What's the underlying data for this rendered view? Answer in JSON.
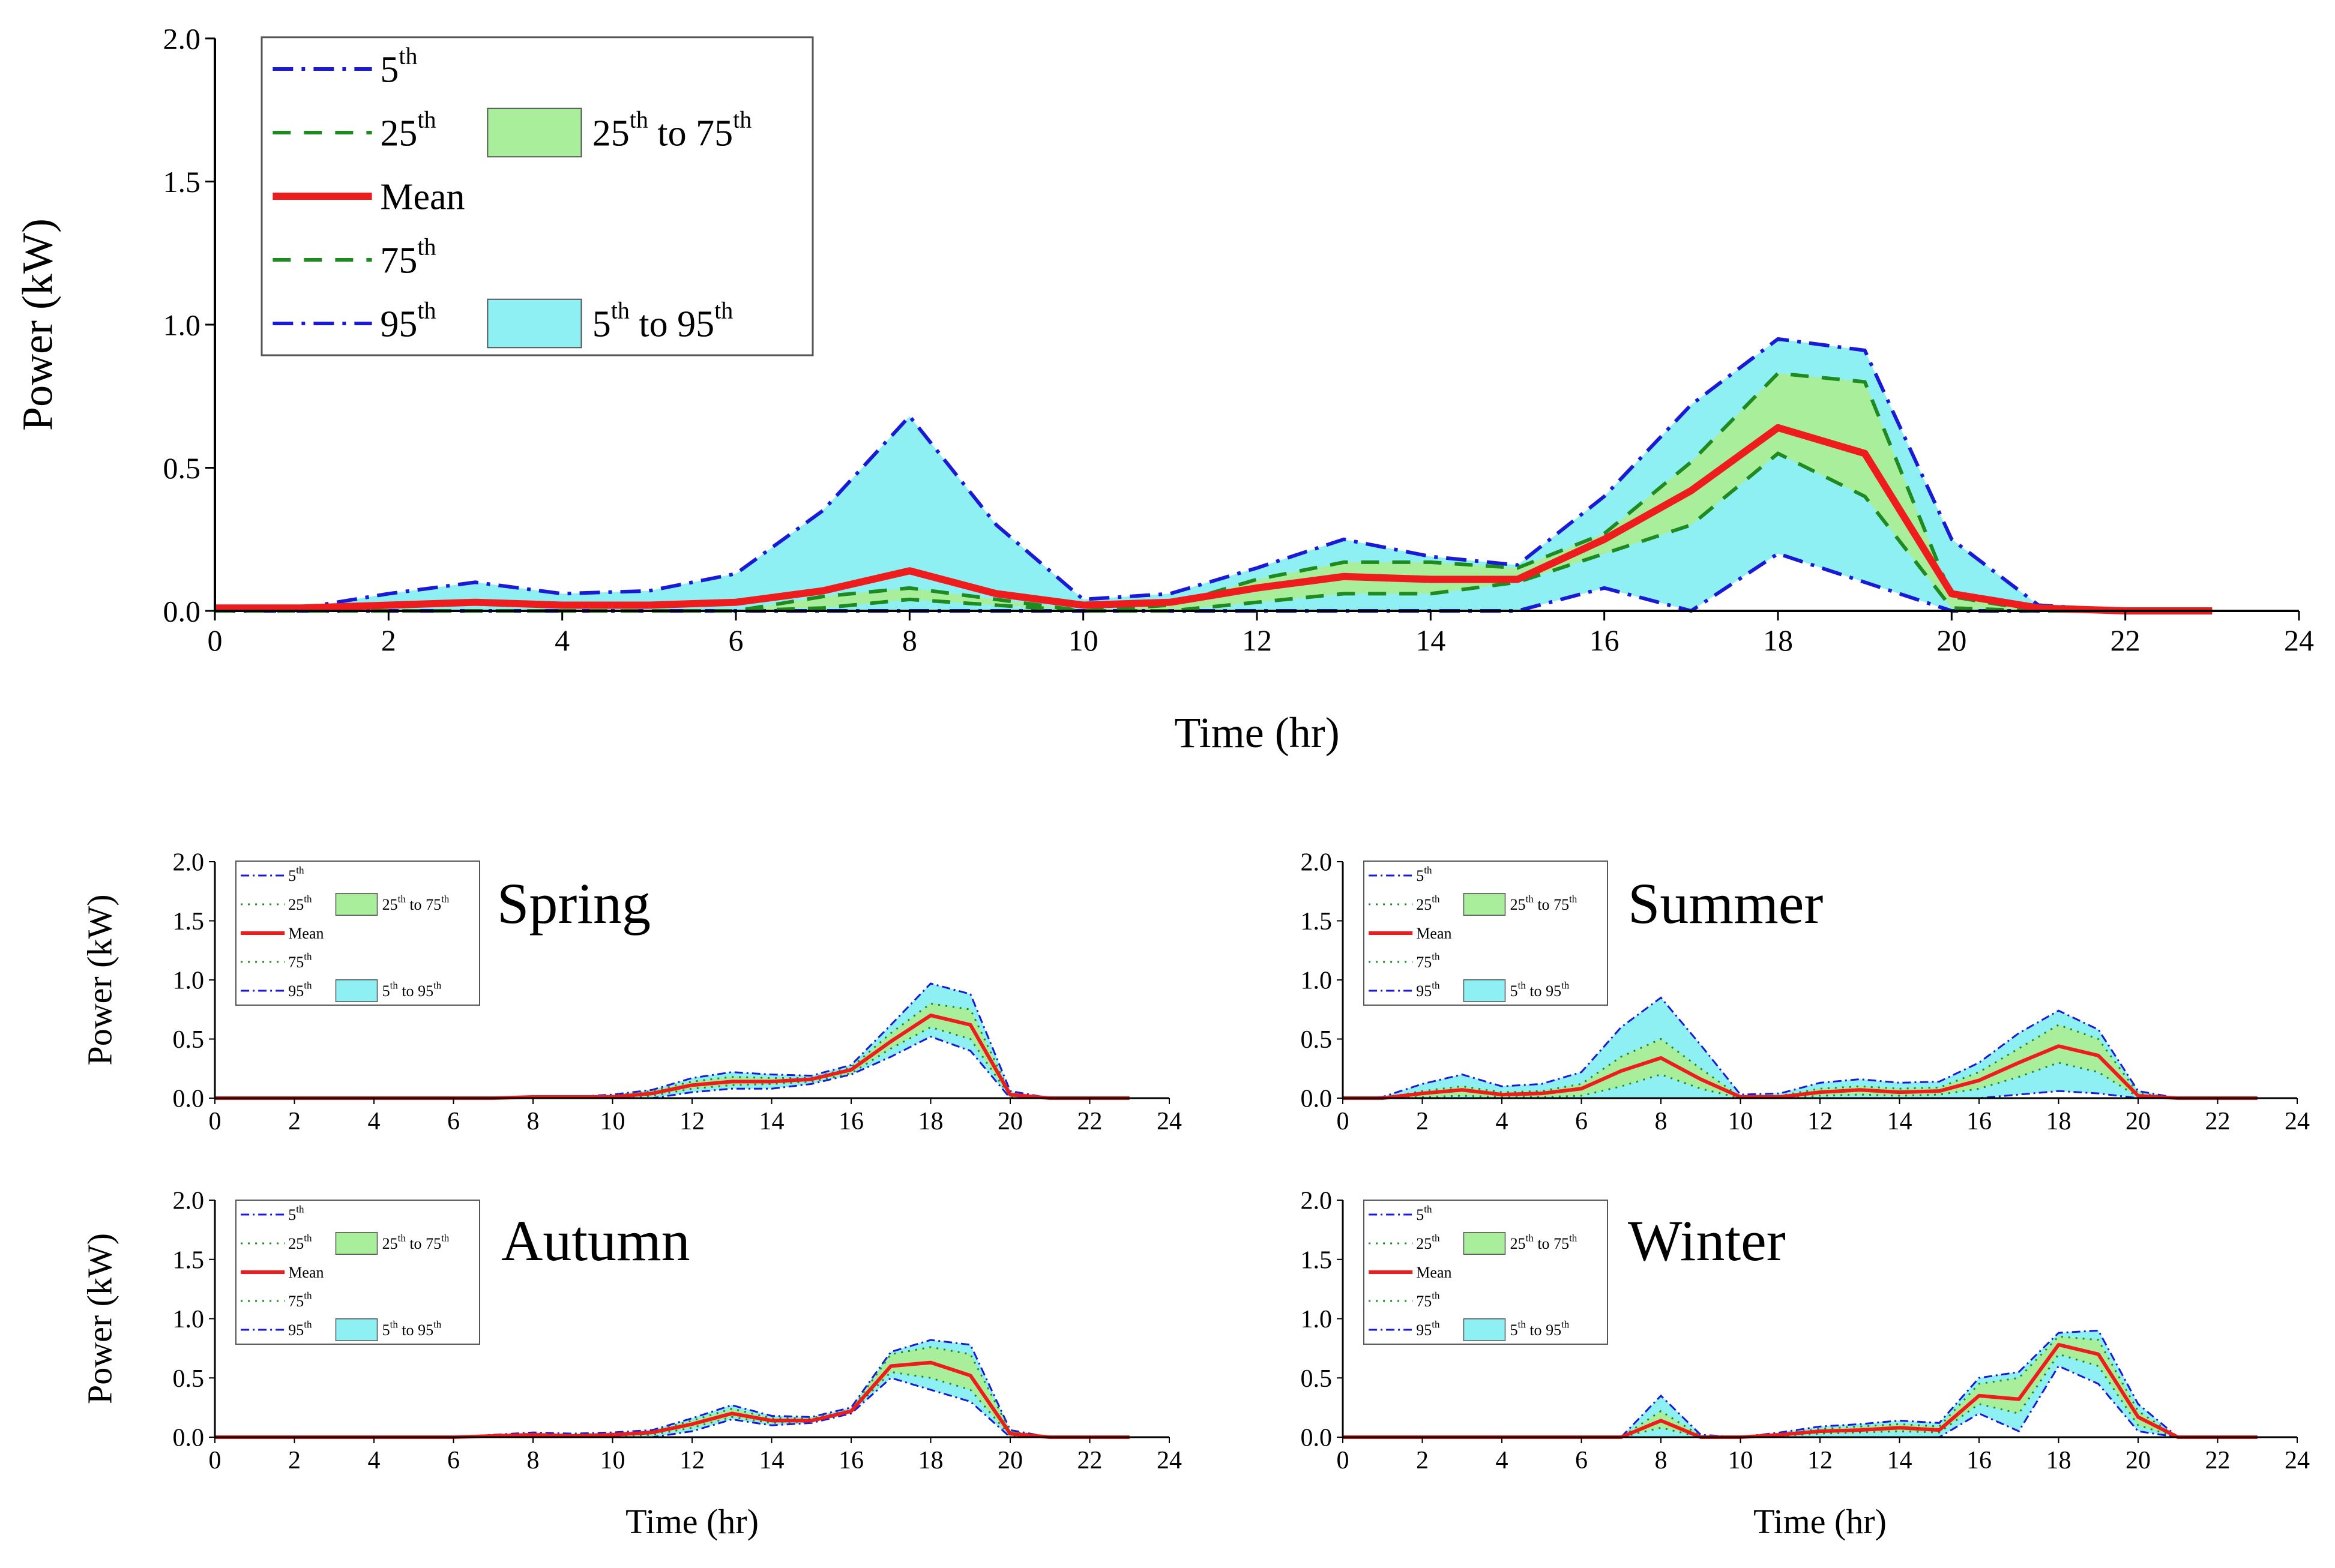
{
  "colors": {
    "p5_95_line": "#1a1ad6",
    "p25_75_line": "#1f8a1f",
    "mean_line": "#ee1c1c",
    "band_5_95": "#8ff0f3",
    "band_25_75": "#a9ee9a",
    "axis": "#000000"
  },
  "chart_data": [
    {
      "type": "line",
      "panel": "Annual",
      "title": "",
      "xlabel": "Time (hr)",
      "ylabel": "Power (kW)",
      "xlim": [
        0,
        24
      ],
      "ylim": [
        0,
        2.0
      ],
      "xticks": [
        "0",
        "2",
        "4",
        "6",
        "8",
        "10",
        "12",
        "14",
        "16",
        "18",
        "20",
        "22",
        "24"
      ],
      "yticks": [
        "0.0",
        "0.5",
        "1.0",
        "1.5",
        "2.0"
      ],
      "legend_position": "top-left",
      "legend": {
        "p5": "5th",
        "p25": "25th",
        "mean": "Mean",
        "p75": "75th",
        "p95": "95th",
        "band_25_75": "25th to 75th",
        "band_5_95": "5th to 95th"
      },
      "x": [
        0,
        1,
        2,
        3,
        4,
        5,
        6,
        7,
        8,
        9,
        10,
        11,
        12,
        13,
        14,
        15,
        16,
        17,
        18,
        19,
        20,
        21,
        22,
        23
      ],
      "series": [
        {
          "name": "5th",
          "values": [
            0,
            0,
            0,
            0,
            0,
            0,
            0,
            0,
            0,
            0,
            0,
            0,
            0,
            0,
            0,
            0,
            0.08,
            0,
            0.2,
            0.1,
            0,
            0,
            0,
            0
          ]
        },
        {
          "name": "25th",
          "values": [
            0,
            0,
            0,
            0,
            0,
            0,
            0,
            0.01,
            0.04,
            0.02,
            0,
            0,
            0.03,
            0.06,
            0.06,
            0.1,
            0.2,
            0.3,
            0.55,
            0.4,
            0.01,
            0,
            0,
            0
          ]
        },
        {
          "name": "Mean",
          "values": [
            0.01,
            0.01,
            0.02,
            0.03,
            0.02,
            0.02,
            0.03,
            0.07,
            0.14,
            0.06,
            0.02,
            0.03,
            0.08,
            0.12,
            0.11,
            0.11,
            0.25,
            0.42,
            0.64,
            0.55,
            0.06,
            0.01,
            0,
            0
          ]
        },
        {
          "name": "75th",
          "values": [
            0,
            0,
            0,
            0,
            0,
            0,
            0,
            0.05,
            0.08,
            0.04,
            0,
            0.02,
            0.11,
            0.17,
            0.17,
            0.15,
            0.27,
            0.52,
            0.83,
            0.8,
            0.05,
            0,
            0,
            0
          ]
        },
        {
          "name": "95th",
          "values": [
            0.01,
            0.01,
            0.06,
            0.1,
            0.06,
            0.07,
            0.13,
            0.35,
            0.68,
            0.3,
            0.04,
            0.06,
            0.15,
            0.25,
            0.19,
            0.16,
            0.4,
            0.72,
            0.95,
            0.91,
            0.25,
            0.02,
            0,
            0
          ]
        }
      ]
    },
    {
      "type": "line",
      "panel": "Spring",
      "title": "Spring",
      "xlabel": "",
      "ylabel": "Power (kW)",
      "xlim": [
        0,
        24
      ],
      "ylim": [
        0,
        2.0
      ],
      "xticks": [
        "0",
        "2",
        "4",
        "6",
        "8",
        "10",
        "12",
        "14",
        "16",
        "18",
        "20",
        "22",
        "24"
      ],
      "yticks": [
        "0.0",
        "0.5",
        "1.0",
        "1.5",
        "2.0"
      ],
      "legend_position": "top-left",
      "legend": {
        "p5": "5th",
        "p25": "25th",
        "mean": "Mean",
        "p75": "75th",
        "p95": "95th",
        "band_25_75": "25th to 75th",
        "band_5_95": "5th to 95th"
      },
      "x": [
        0,
        1,
        2,
        3,
        4,
        5,
        6,
        7,
        8,
        9,
        10,
        11,
        12,
        13,
        14,
        15,
        16,
        17,
        18,
        19,
        20,
        21,
        22,
        23
      ],
      "series": [
        {
          "name": "5th",
          "values": [
            0,
            0,
            0,
            0,
            0,
            0,
            0,
            0,
            0,
            0,
            0,
            0,
            0.05,
            0.08,
            0.08,
            0.12,
            0.2,
            0.35,
            0.52,
            0.4,
            0,
            0,
            0,
            0
          ]
        },
        {
          "name": "25th",
          "values": [
            0,
            0,
            0,
            0,
            0,
            0,
            0,
            0,
            0,
            0,
            0,
            0.02,
            0.08,
            0.11,
            0.12,
            0.14,
            0.21,
            0.42,
            0.6,
            0.5,
            0.01,
            0,
            0,
            0
          ]
        },
        {
          "name": "Mean",
          "values": [
            0,
            0,
            0,
            0,
            0,
            0,
            0,
            0,
            0.01,
            0.01,
            0.01,
            0.04,
            0.11,
            0.14,
            0.14,
            0.16,
            0.24,
            0.48,
            0.7,
            0.62,
            0.03,
            0,
            0,
            0
          ]
        },
        {
          "name": "75th",
          "values": [
            0,
            0,
            0,
            0,
            0,
            0,
            0,
            0,
            0.01,
            0.01,
            0.02,
            0.06,
            0.14,
            0.18,
            0.17,
            0.17,
            0.26,
            0.55,
            0.8,
            0.75,
            0.04,
            0,
            0,
            0
          ]
        },
        {
          "name": "95th",
          "values": [
            0,
            0,
            0,
            0,
            0,
            0,
            0,
            0,
            0.01,
            0.01,
            0.03,
            0.07,
            0.17,
            0.22,
            0.2,
            0.19,
            0.28,
            0.62,
            0.97,
            0.88,
            0.06,
            0,
            0,
            0
          ]
        }
      ]
    },
    {
      "type": "line",
      "panel": "Summer",
      "title": "Summer",
      "xlabel": "",
      "ylabel": "",
      "xlim": [
        0,
        24
      ],
      "ylim": [
        0,
        2.0
      ],
      "xticks": [
        "0",
        "2",
        "4",
        "6",
        "8",
        "10",
        "12",
        "14",
        "16",
        "18",
        "20",
        "22",
        "24"
      ],
      "yticks": [
        "0.0",
        "0.5",
        "1.0",
        "1.5",
        "2.0"
      ],
      "legend_position": "top-left",
      "legend": {
        "p5": "5th",
        "p25": "25th",
        "mean": "Mean",
        "p75": "75th",
        "p95": "95th",
        "band_25_75": "25th to 75th",
        "band_5_95": "5th to 95th"
      },
      "x": [
        0,
        1,
        2,
        3,
        4,
        5,
        6,
        7,
        8,
        9,
        10,
        11,
        12,
        13,
        14,
        15,
        16,
        17,
        18,
        19,
        20,
        21,
        22,
        23
      ],
      "series": [
        {
          "name": "5th",
          "values": [
            0,
            0,
            0,
            0,
            0,
            0,
            0,
            0,
            0,
            0,
            0,
            0,
            0,
            0,
            0,
            0,
            0,
            0.03,
            0.06,
            0.04,
            0,
            0,
            0,
            0
          ]
        },
        {
          "name": "25th",
          "values": [
            0,
            0,
            0.01,
            0.02,
            0.01,
            0.01,
            0.02,
            0.1,
            0.2,
            0.08,
            0,
            0,
            0.02,
            0.03,
            0.02,
            0.03,
            0.08,
            0.18,
            0.3,
            0.22,
            0.01,
            0,
            0,
            0
          ]
        },
        {
          "name": "Mean",
          "values": [
            0,
            0,
            0.04,
            0.07,
            0.03,
            0.04,
            0.08,
            0.23,
            0.34,
            0.16,
            0.01,
            0.01,
            0.05,
            0.07,
            0.05,
            0.06,
            0.15,
            0.3,
            0.44,
            0.36,
            0.02,
            0,
            0,
            0
          ]
        },
        {
          "name": "75th",
          "values": [
            0,
            0,
            0.06,
            0.1,
            0.05,
            0.06,
            0.12,
            0.35,
            0.5,
            0.25,
            0.01,
            0.02,
            0.08,
            0.1,
            0.08,
            0.09,
            0.22,
            0.42,
            0.62,
            0.5,
            0.04,
            0,
            0,
            0
          ]
        },
        {
          "name": "95th",
          "values": [
            0,
            0.01,
            0.12,
            0.2,
            0.1,
            0.12,
            0.22,
            0.6,
            0.85,
            0.45,
            0.03,
            0.04,
            0.13,
            0.16,
            0.13,
            0.14,
            0.3,
            0.55,
            0.74,
            0.58,
            0.06,
            0,
            0,
            0
          ]
        }
      ]
    },
    {
      "type": "line",
      "panel": "Autumn",
      "title": "Autumn",
      "xlabel": "Time (hr)",
      "ylabel": "Power (kW)",
      "xlim": [
        0,
        24
      ],
      "ylim": [
        0,
        2.0
      ],
      "xticks": [
        "0",
        "2",
        "4",
        "6",
        "8",
        "10",
        "12",
        "14",
        "16",
        "18",
        "20",
        "22",
        "24"
      ],
      "yticks": [
        "0.0",
        "0.5",
        "1.0",
        "1.5",
        "2.0"
      ],
      "legend_position": "top-left",
      "legend": {
        "p5": "5th",
        "p25": "25th",
        "mean": "Mean",
        "p75": "75th",
        "p95": "95th",
        "band_25_75": "25th to 75th",
        "band_5_95": "5th to 95th"
      },
      "x": [
        0,
        1,
        2,
        3,
        4,
        5,
        6,
        7,
        8,
        9,
        10,
        11,
        12,
        13,
        14,
        15,
        16,
        17,
        18,
        19,
        20,
        21,
        22,
        23
      ],
      "series": [
        {
          "name": "5th",
          "values": [
            0,
            0,
            0,
            0,
            0,
            0,
            0,
            0,
            0,
            0,
            0,
            0,
            0.05,
            0.15,
            0.1,
            0.12,
            0.2,
            0.5,
            0.4,
            0.3,
            0,
            0,
            0,
            0
          ]
        },
        {
          "name": "25th",
          "values": [
            0,
            0,
            0,
            0,
            0,
            0,
            0,
            0,
            0.01,
            0.01,
            0.01,
            0.02,
            0.08,
            0.17,
            0.12,
            0.13,
            0.21,
            0.55,
            0.5,
            0.4,
            0.01,
            0,
            0,
            0
          ]
        },
        {
          "name": "Mean",
          "values": [
            0,
            0,
            0,
            0,
            0,
            0,
            0,
            0.01,
            0.02,
            0.01,
            0.02,
            0.04,
            0.11,
            0.2,
            0.14,
            0.14,
            0.22,
            0.6,
            0.63,
            0.52,
            0.03,
            0,
            0,
            0
          ]
        },
        {
          "name": "75th",
          "values": [
            0,
            0,
            0,
            0,
            0,
            0,
            0,
            0.01,
            0.03,
            0.02,
            0.03,
            0.05,
            0.14,
            0.24,
            0.16,
            0.16,
            0.23,
            0.7,
            0.76,
            0.7,
            0.05,
            0,
            0,
            0
          ]
        },
        {
          "name": "95th",
          "values": [
            0,
            0,
            0,
            0,
            0,
            0,
            0,
            0.02,
            0.04,
            0.03,
            0.04,
            0.06,
            0.16,
            0.27,
            0.18,
            0.17,
            0.25,
            0.72,
            0.82,
            0.78,
            0.06,
            0,
            0,
            0
          ]
        }
      ]
    },
    {
      "type": "line",
      "panel": "Winter",
      "title": "Winter",
      "xlabel": "Time (hr)",
      "ylabel": "",
      "xlim": [
        0,
        24
      ],
      "ylim": [
        0,
        2.0
      ],
      "xticks": [
        "0",
        "2",
        "4",
        "6",
        "8",
        "10",
        "12",
        "14",
        "16",
        "18",
        "20",
        "22",
        "24"
      ],
      "yticks": [
        "0.0",
        "0.5",
        "1.0",
        "1.5",
        "2.0"
      ],
      "legend_position": "top-left",
      "legend": {
        "p5": "5th",
        "p25": "25th",
        "mean": "Mean",
        "p75": "75th",
        "p95": "95th",
        "band_25_75": "25th to 75th",
        "band_5_95": "5th to 95th"
      },
      "x": [
        0,
        1,
        2,
        3,
        4,
        5,
        6,
        7,
        8,
        9,
        10,
        11,
        12,
        13,
        14,
        15,
        16,
        17,
        18,
        19,
        20,
        21,
        22,
        23
      ],
      "series": [
        {
          "name": "5th",
          "values": [
            0,
            0,
            0,
            0,
            0,
            0,
            0,
            0,
            0,
            0,
            0,
            0,
            0,
            0,
            0,
            0,
            0.2,
            0.05,
            0.6,
            0.45,
            0.05,
            0,
            0,
            0
          ]
        },
        {
          "name": "25th",
          "values": [
            0,
            0,
            0,
            0,
            0,
            0,
            0,
            0,
            0.08,
            0,
            0,
            0.01,
            0.03,
            0.04,
            0.05,
            0.04,
            0.28,
            0.2,
            0.7,
            0.6,
            0.1,
            0,
            0,
            0
          ]
        },
        {
          "name": "Mean",
          "values": [
            0,
            0,
            0,
            0,
            0,
            0,
            0,
            0,
            0.14,
            0,
            0,
            0.02,
            0.05,
            0.06,
            0.08,
            0.06,
            0.35,
            0.32,
            0.78,
            0.7,
            0.17,
            0,
            0,
            0
          ]
        },
        {
          "name": "75th",
          "values": [
            0,
            0,
            0,
            0,
            0,
            0,
            0,
            0,
            0.22,
            0.01,
            0,
            0.03,
            0.07,
            0.09,
            0.11,
            0.09,
            0.45,
            0.5,
            0.85,
            0.82,
            0.22,
            0,
            0,
            0
          ]
        },
        {
          "name": "95th",
          "values": [
            0,
            0,
            0,
            0,
            0,
            0,
            0,
            0,
            0.35,
            0.02,
            0,
            0.04,
            0.09,
            0.11,
            0.14,
            0.12,
            0.5,
            0.55,
            0.88,
            0.9,
            0.28,
            0,
            0,
            0
          ]
        }
      ]
    }
  ]
}
